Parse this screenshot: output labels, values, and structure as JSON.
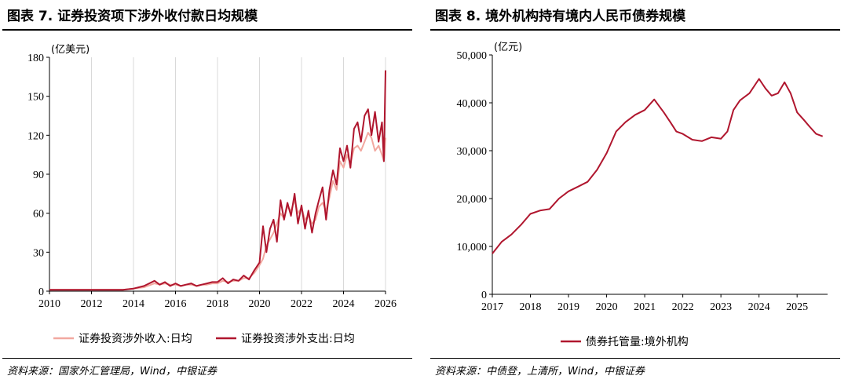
{
  "left": {
    "title": "图表 7. 证券投资项下涉外收付款日均规模",
    "source": "资料来源：国家外汇管理局，Wind，中银证券",
    "chart_data": {
      "type": "line",
      "unit": "(亿美元)",
      "x": [
        2010,
        2010.5,
        2011,
        2011.5,
        2012,
        2012.5,
        2013,
        2013.5,
        2014,
        2014.5,
        2015,
        2015.25,
        2015.5,
        2015.75,
        2016,
        2016.25,
        2016.5,
        2016.75,
        2017,
        2017.25,
        2017.5,
        2017.75,
        2018,
        2018.25,
        2018.5,
        2018.75,
        2019,
        2019.25,
        2019.5,
        2019.75,
        2020,
        2020.17,
        2020.33,
        2020.5,
        2020.67,
        2020.83,
        2021,
        2021.17,
        2021.33,
        2021.5,
        2021.67,
        2021.83,
        2022,
        2022.17,
        2022.33,
        2022.5,
        2022.67,
        2022.83,
        2023,
        2023.17,
        2023.33,
        2023.5,
        2023.67,
        2023.83,
        2024,
        2024.17,
        2024.33,
        2024.5,
        2024.67,
        2024.83,
        2025,
        2025.17,
        2025.33,
        2025.5,
        2025.67,
        2025.83,
        2025.92,
        2026
      ],
      "series": [
        {
          "name": "证券投资涉外收入:日均",
          "color": "#f2a8a0",
          "values": [
            1,
            1,
            1,
            1,
            1,
            1,
            1,
            1,
            2,
            3,
            6,
            5,
            6,
            5,
            5,
            4,
            5,
            5,
            4,
            5,
            5,
            6,
            6,
            8,
            7,
            8,
            8,
            10,
            10,
            14,
            20,
            25,
            35,
            40,
            45,
            52,
            60,
            56,
            65,
            62,
            70,
            60,
            64,
            55,
            58,
            52,
            55,
            65,
            68,
            62,
            72,
            85,
            78,
            100,
            95,
            105,
            98,
            110,
            112,
            108,
            115,
            122,
            118,
            108,
            112,
            105,
            100,
            118
          ]
        },
        {
          "name": "证券投资涉外支出:日均",
          "color": "#b0162e",
          "values": [
            1,
            1,
            1,
            1,
            1,
            1,
            1,
            1,
            2,
            4,
            8,
            5,
            7,
            4,
            6,
            4,
            5,
            6,
            4,
            5,
            6,
            7,
            7,
            10,
            6,
            9,
            8,
            12,
            9,
            16,
            22,
            50,
            30,
            48,
            55,
            38,
            70,
            55,
            68,
            58,
            75,
            52,
            66,
            48,
            62,
            45,
            60,
            70,
            80,
            55,
            78,
            93,
            82,
            110,
            100,
            112,
            95,
            125,
            130,
            115,
            135,
            140,
            120,
            138,
            115,
            130,
            100,
            170
          ]
        }
      ],
      "xticks": [
        2010,
        2012,
        2014,
        2016,
        2018,
        2020,
        2022,
        2024,
        2026
      ],
      "yticks": [
        0,
        30,
        60,
        90,
        120,
        150,
        180
      ],
      "xlim": [
        2010,
        2026
      ],
      "ylim": [
        0,
        180
      ],
      "grid": "vertical",
      "legend": "bottom"
    }
  },
  "right": {
    "title": "图表 8. 境外机构持有境内人民币债券规模",
    "source": "资料来源：中债登，上清所，Wind，中银证券",
    "chart_data": {
      "type": "line",
      "unit": "(亿元)",
      "x": [
        2017,
        2017.25,
        2017.5,
        2017.75,
        2018,
        2018.25,
        2018.5,
        2018.75,
        2019,
        2019.25,
        2019.5,
        2019.75,
        2020,
        2020.25,
        2020.5,
        2020.75,
        2021,
        2021.25,
        2021.5,
        2021.67,
        2021.83,
        2022,
        2022.25,
        2022.5,
        2022.75,
        2023,
        2023.17,
        2023.33,
        2023.5,
        2023.75,
        2024,
        2024.17,
        2024.33,
        2024.5,
        2024.67,
        2024.83,
        2025,
        2025.17,
        2025.33,
        2025.5,
        2025.67
      ],
      "series": [
        {
          "name": "债券托管量:境外机构",
          "color": "#b0162e",
          "values": [
            8500,
            11000,
            12500,
            14500,
            16800,
            17500,
            17800,
            20000,
            21500,
            22500,
            23500,
            26000,
            29500,
            34000,
            36000,
            37500,
            38500,
            40700,
            38000,
            36000,
            34000,
            33500,
            32300,
            32000,
            32800,
            32500,
            34000,
            38500,
            40500,
            42000,
            45000,
            43000,
            41500,
            42000,
            44300,
            42000,
            38000,
            36500,
            35000,
            33500,
            33000
          ]
        }
      ],
      "xticks": [
        2017,
        2018,
        2019,
        2020,
        2021,
        2022,
        2023,
        2024,
        2025
      ],
      "yticks": [
        "0",
        "10,000",
        "20,000",
        "30,000",
        "40,000",
        "50,000"
      ],
      "ytick_values": [
        0,
        10000,
        20000,
        30000,
        40000,
        50000
      ],
      "xlim": [
        2017,
        2025.8
      ],
      "ylim": [
        0,
        50000
      ],
      "grid": "none",
      "legend": "bottom"
    }
  }
}
